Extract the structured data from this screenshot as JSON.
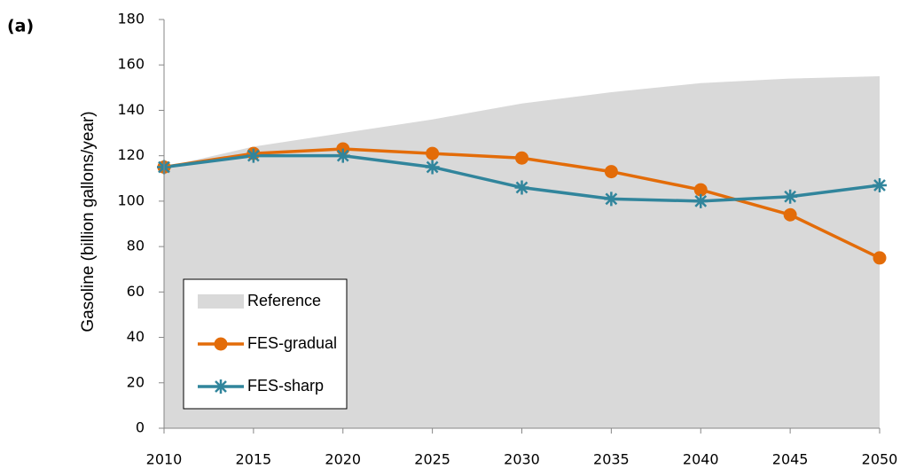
{
  "chart_data": {
    "type": "line",
    "annotation": "(a)",
    "y_label": "Gasoline (billion gallons/year)",
    "x": [
      2010,
      2015,
      2020,
      2025,
      2030,
      2035,
      2040,
      2045,
      2050
    ],
    "xlim": [
      2010,
      2050
    ],
    "xticks": [
      2010,
      2015,
      2020,
      2025,
      2030,
      2035,
      2040,
      2045,
      2050
    ],
    "ylim": [
      0,
      180
    ],
    "yticks": [
      0,
      20,
      40,
      60,
      80,
      100,
      120,
      140,
      160,
      180
    ],
    "legend": "lower left",
    "series": [
      {
        "name": "Reference",
        "color": "#d9d9d9",
        "style": "area",
        "values": [
          115,
          124,
          130,
          136,
          143,
          148,
          152,
          154,
          155
        ]
      },
      {
        "name": "FES-gradual",
        "color": "#e36c09",
        "style": "line",
        "marker": "circle",
        "values": [
          115,
          121,
          123,
          121,
          119,
          113,
          105,
          94,
          75
        ]
      },
      {
        "name": "FES-sharp",
        "color": "#31859c",
        "style": "line",
        "marker": "asterisk",
        "values": [
          115,
          120,
          120,
          115,
          106,
          101,
          100,
          102,
          107
        ]
      }
    ]
  }
}
